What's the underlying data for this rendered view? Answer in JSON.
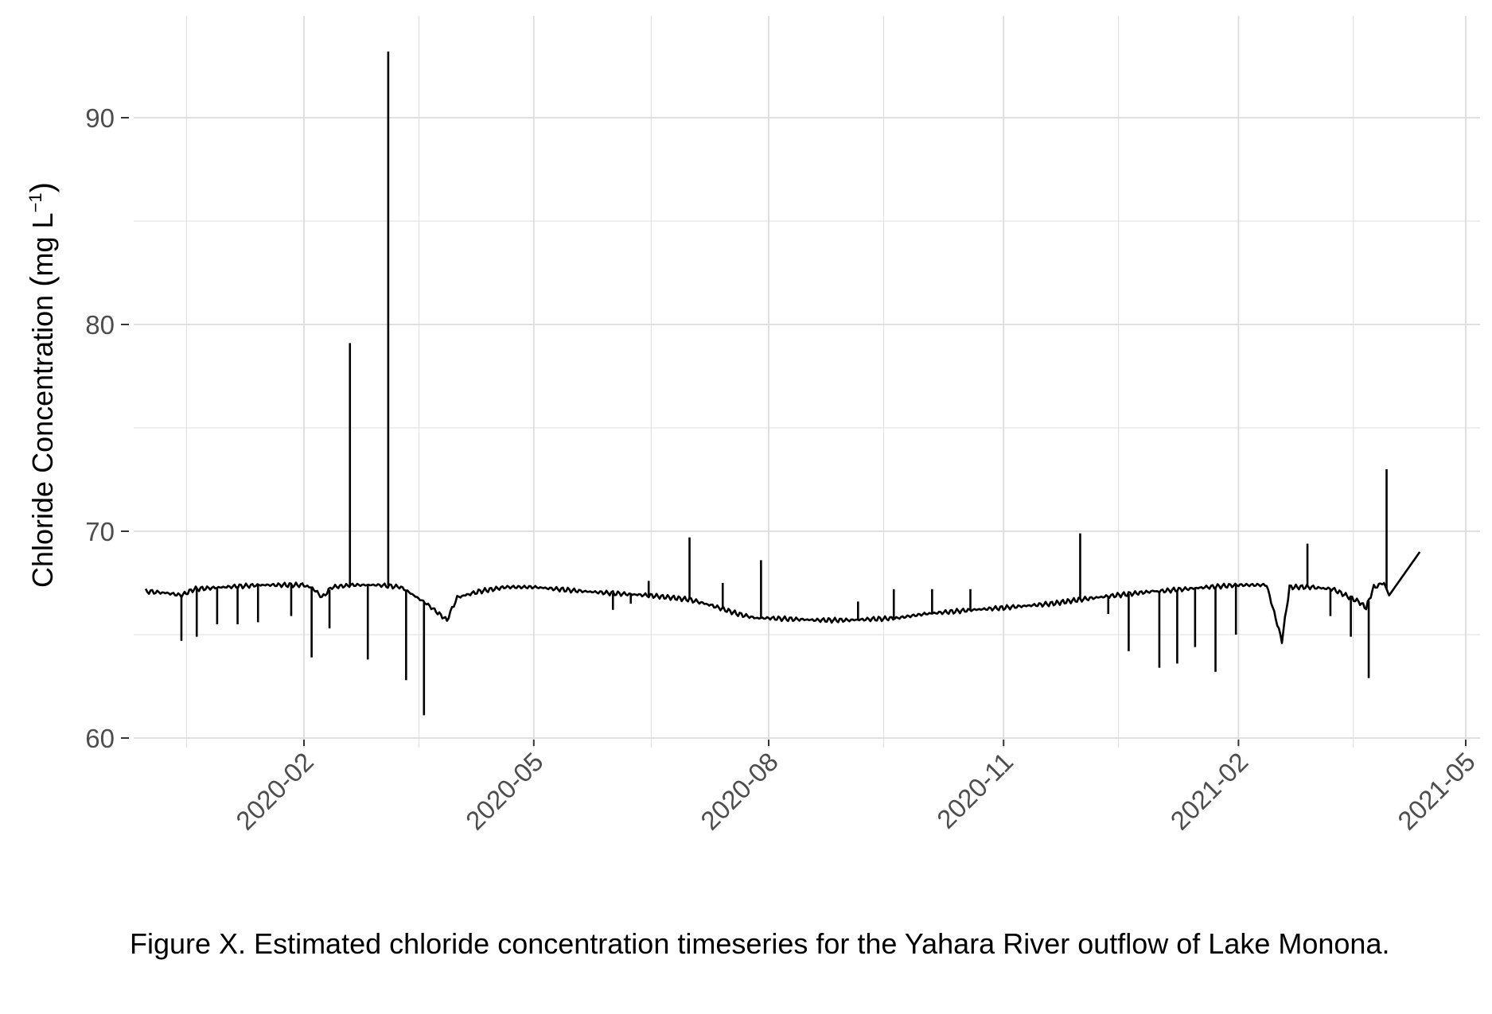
{
  "colors": {
    "line": "#000000",
    "grid": "#dcdcdc",
    "tick_text": "#4d4d4d",
    "background": "#ffffff"
  },
  "caption": "Figure X. Estimated chloride concentration timeseries for the Yahara River outflow of Lake Monona.",
  "chart_data": {
    "type": "line",
    "title": "",
    "xlabel": "",
    "ylabel_main": "Chloride Concentration ",
    "ylabel_open": "(",
    "ylabel_unit": "mg L",
    "ylabel_exp": "−1",
    "ylabel_close": ")",
    "x_axis": "date",
    "xlim": [
      "2019-12-01",
      "2021-05-01"
    ],
    "ylim": [
      60,
      95
    ],
    "x_ticks": [
      "2020-02",
      "2020-05",
      "2020-08",
      "2020-11",
      "2021-02",
      "2021-05"
    ],
    "x_tick_dates": [
      "2020-02-01",
      "2020-05-01",
      "2020-08-01",
      "2020-11-01",
      "2021-02-01",
      "2021-05-01"
    ],
    "x_minor_dates": [
      "2019-12-17",
      "2020-03-17",
      "2020-06-16",
      "2020-09-15",
      "2020-12-16",
      "2021-03-18"
    ],
    "y_ticks": [
      60,
      70,
      80,
      90
    ],
    "y_minor": [
      65,
      75,
      85
    ],
    "grid": true,
    "legend": "none",
    "series": [
      {
        "baseline": [
          [
            "2019-12-01",
            67.1
          ],
          [
            "2019-12-10",
            67.0
          ],
          [
            "2019-12-15",
            66.9
          ],
          [
            "2019-12-20",
            67.2
          ],
          [
            "2020-01-01",
            67.3
          ],
          [
            "2020-01-15",
            67.4
          ],
          [
            "2020-02-01",
            67.4
          ],
          [
            "2020-02-05",
            67.2
          ],
          [
            "2020-02-08",
            66.8
          ],
          [
            "2020-02-12",
            67.3
          ],
          [
            "2020-02-20",
            67.4
          ],
          [
            "2020-03-01",
            67.4
          ],
          [
            "2020-03-10",
            67.3
          ],
          [
            "2020-03-15",
            66.9
          ],
          [
            "2020-03-20",
            66.5
          ],
          [
            "2020-03-25",
            66.0
          ],
          [
            "2020-03-28",
            65.7
          ],
          [
            "2020-04-01",
            66.8
          ],
          [
            "2020-04-10",
            67.1
          ],
          [
            "2020-04-20",
            67.3
          ],
          [
            "2020-05-01",
            67.3
          ],
          [
            "2020-05-20",
            67.1
          ],
          [
            "2020-06-01",
            67.0
          ],
          [
            "2020-06-15",
            66.9
          ],
          [
            "2020-07-01",
            66.7
          ],
          [
            "2020-07-10",
            66.4
          ],
          [
            "2020-07-20",
            66.0
          ],
          [
            "2020-07-27",
            65.8
          ],
          [
            "2020-08-01",
            65.8
          ],
          [
            "2020-08-20",
            65.7
          ],
          [
            "2020-09-01",
            65.7
          ],
          [
            "2020-09-20",
            65.8
          ],
          [
            "2020-10-01",
            66.0
          ],
          [
            "2020-10-20",
            66.2
          ],
          [
            "2020-11-01",
            66.3
          ],
          [
            "2020-11-20",
            66.5
          ],
          [
            "2020-12-01",
            66.7
          ],
          [
            "2020-12-15",
            66.9
          ],
          [
            "2020-12-30",
            67.1
          ],
          [
            "2021-01-01",
            67.1
          ],
          [
            "2021-01-20",
            67.3
          ],
          [
            "2021-02-01",
            67.4
          ],
          [
            "2021-02-12",
            67.4
          ],
          [
            "2021-02-18",
            64.7
          ],
          [
            "2021-02-21",
            67.3
          ],
          [
            "2021-03-01",
            67.3
          ],
          [
            "2021-03-10",
            67.2
          ],
          [
            "2021-03-15",
            66.9
          ],
          [
            "2021-03-20",
            66.6
          ],
          [
            "2021-03-23",
            66.3
          ],
          [
            "2021-03-26",
            67.3
          ],
          [
            "2021-03-30",
            67.5
          ],
          [
            "2021-04-01",
            66.9
          ],
          [
            "2021-04-13",
            69.0
          ]
        ],
        "spikes": [
          [
            "2019-12-15",
            64.7
          ],
          [
            "2019-12-21",
            64.9
          ],
          [
            "2019-12-29",
            65.5
          ],
          [
            "2020-01-06",
            65.5
          ],
          [
            "2020-01-14",
            65.6
          ],
          [
            "2020-01-27",
            65.9
          ],
          [
            "2020-02-04",
            63.9
          ],
          [
            "2020-02-11",
            65.3
          ],
          [
            "2020-02-19",
            79.1
          ],
          [
            "2020-02-26",
            63.8
          ],
          [
            "2020-03-05",
            93.2
          ],
          [
            "2020-03-12",
            62.8
          ],
          [
            "2020-03-19",
            61.1
          ],
          [
            "2020-06-01",
            66.2
          ],
          [
            "2020-06-08",
            66.5
          ],
          [
            "2020-06-15",
            67.6
          ],
          [
            "2020-07-01",
            69.7
          ],
          [
            "2020-07-14",
            67.5
          ],
          [
            "2020-07-29",
            68.6
          ],
          [
            "2020-09-05",
            66.6
          ],
          [
            "2020-09-19",
            67.2
          ],
          [
            "2020-10-04",
            67.2
          ],
          [
            "2020-10-19",
            67.2
          ],
          [
            "2020-12-01",
            69.9
          ],
          [
            "2020-12-12",
            66.0
          ],
          [
            "2020-12-20",
            64.2
          ],
          [
            "2021-01-01",
            63.4
          ],
          [
            "2021-01-08",
            63.6
          ],
          [
            "2021-01-15",
            64.4
          ],
          [
            "2021-01-23",
            63.2
          ],
          [
            "2021-01-31",
            65.0
          ],
          [
            "2021-02-28",
            69.4
          ],
          [
            "2021-03-09",
            65.9
          ],
          [
            "2021-03-17",
            64.9
          ],
          [
            "2021-03-24",
            62.9
          ],
          [
            "2021-03-31",
            73.0
          ]
        ]
      }
    ]
  }
}
